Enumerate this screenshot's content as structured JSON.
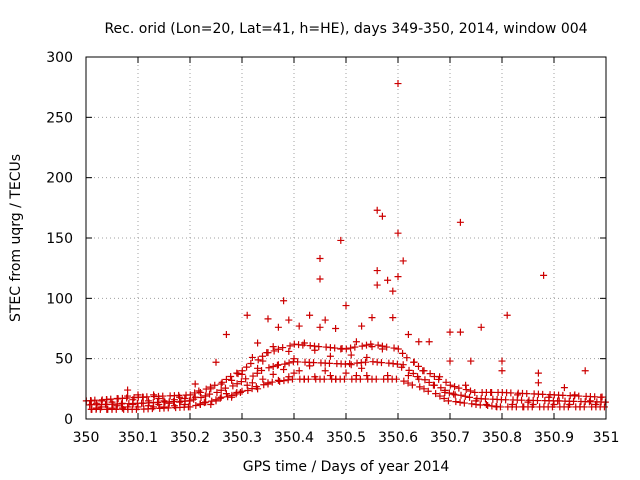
{
  "chart_data": {
    "type": "scatter",
    "title": "Rec. orid (Lon=20, Lat=41, h=HE), days 349-350, 2014, window 004",
    "xlabel": "GPS time / Days of year 2014",
    "ylabel": "STEC from uqrg / TECUs",
    "xlim": [
      350,
      351
    ],
    "ylim": [
      0,
      300
    ],
    "x_ticks": [
      350,
      350.1,
      350.2,
      350.3,
      350.4,
      350.5,
      350.6,
      350.7,
      350.8,
      350.9,
      351
    ],
    "x_tick_labels": [
      "350",
      "350.1",
      "350.2",
      "350.3",
      "350.4",
      "350.5",
      "350.6",
      "350.7",
      "350.8",
      "350.9",
      "351"
    ],
    "y_ticks": [
      0,
      50,
      100,
      150,
      200,
      250,
      300
    ],
    "y_tick_labels": [
      "0",
      "50",
      "100",
      "150",
      "200",
      "250",
      "300"
    ],
    "grid": true,
    "marker": "plus",
    "color": "#cc0000",
    "legend": "none",
    "points": [
      [
        350.01,
        8
      ],
      [
        350.01,
        12
      ],
      [
        350.01,
        15
      ],
      [
        350.02,
        9
      ],
      [
        350.02,
        13
      ],
      [
        350.03,
        10
      ],
      [
        350.03,
        15
      ],
      [
        350.04,
        8
      ],
      [
        350.04,
        12
      ],
      [
        350.04,
        16
      ],
      [
        350.05,
        9
      ],
      [
        350.05,
        14
      ],
      [
        350.06,
        11
      ],
      [
        350.06,
        17
      ],
      [
        350.07,
        9
      ],
      [
        350.07,
        13
      ],
      [
        350.08,
        10
      ],
      [
        350.08,
        19
      ],
      [
        350.08,
        24
      ],
      [
        350.09,
        12
      ],
      [
        350.09,
        16
      ],
      [
        350.1,
        10
      ],
      [
        350.1,
        20
      ],
      [
        350.11,
        13
      ],
      [
        350.11,
        18
      ],
      [
        350.12,
        11
      ],
      [
        350.12,
        15
      ],
      [
        350.13,
        10
      ],
      [
        350.13,
        20
      ],
      [
        350.14,
        12
      ],
      [
        350.14,
        17
      ],
      [
        350.15,
        10
      ],
      [
        350.15,
        15
      ],
      [
        350.16,
        13
      ],
      [
        350.17,
        11
      ],
      [
        350.17,
        16
      ],
      [
        350.18,
        14
      ],
      [
        350.18,
        18
      ],
      [
        350.19,
        12
      ],
      [
        350.19,
        17
      ],
      [
        350.2,
        10
      ],
      [
        350.2,
        15
      ],
      [
        350.21,
        18
      ],
      [
        350.21,
        29
      ],
      [
        350.22,
        12
      ],
      [
        350.22,
        22
      ],
      [
        350.23,
        14
      ],
      [
        350.23,
        19
      ],
      [
        350.24,
        12
      ],
      [
        350.24,
        25
      ],
      [
        350.25,
        15
      ],
      [
        350.25,
        47
      ],
      [
        350.26,
        18
      ],
      [
        350.26,
        29
      ],
      [
        350.27,
        21
      ],
      [
        350.27,
        70
      ],
      [
        350.28,
        18
      ],
      [
        350.28,
        32
      ],
      [
        350.29,
        22
      ],
      [
        350.29,
        38
      ],
      [
        350.3,
        23
      ],
      [
        350.3,
        37
      ],
      [
        350.31,
        86
      ],
      [
        350.31,
        28
      ],
      [
        350.32,
        30
      ],
      [
        350.32,
        51
      ],
      [
        350.33,
        25
      ],
      [
        350.33,
        42
      ],
      [
        350.33,
        63
      ],
      [
        350.34,
        33
      ],
      [
        350.34,
        48
      ],
      [
        350.35,
        29
      ],
      [
        350.35,
        83
      ],
      [
        350.35,
        55
      ],
      [
        350.36,
        37
      ],
      [
        350.36,
        60
      ],
      [
        350.37,
        32
      ],
      [
        350.37,
        45
      ],
      [
        350.37,
        76
      ],
      [
        350.38,
        41
      ],
      [
        350.38,
        98
      ],
      [
        350.39,
        35
      ],
      [
        350.39,
        56
      ],
      [
        350.39,
        82
      ],
      [
        350.4,
        38
      ],
      [
        350.4,
        50
      ],
      [
        350.41,
        40
      ],
      [
        350.41,
        77
      ],
      [
        350.42,
        33
      ],
      [
        350.42,
        63
      ],
      [
        350.43,
        44
      ],
      [
        350.43,
        86
      ],
      [
        350.44,
        35
      ],
      [
        350.44,
        57
      ],
      [
        350.45,
        133
      ],
      [
        350.45,
        116
      ],
      [
        350.45,
        76
      ],
      [
        350.46,
        40
      ],
      [
        350.46,
        82
      ],
      [
        350.47,
        36
      ],
      [
        350.47,
        52
      ],
      [
        350.48,
        33
      ],
      [
        350.48,
        75
      ],
      [
        350.49,
        148
      ],
      [
        350.49,
        58
      ],
      [
        350.5,
        38
      ],
      [
        350.5,
        94
      ],
      [
        350.51,
        45
      ],
      [
        350.51,
        53
      ],
      [
        350.52,
        36
      ],
      [
        350.52,
        64
      ],
      [
        350.53,
        42
      ],
      [
        350.53,
        77
      ],
      [
        350.54,
        36
      ],
      [
        350.54,
        51
      ],
      [
        350.55,
        60
      ],
      [
        350.55,
        84
      ],
      [
        350.56,
        173
      ],
      [
        350.56,
        123
      ],
      [
        350.56,
        111
      ],
      [
        350.57,
        168
      ],
      [
        350.57,
        58
      ],
      [
        350.58,
        115
      ],
      [
        350.58,
        36
      ],
      [
        350.59,
        106
      ],
      [
        350.59,
        84
      ],
      [
        350.6,
        278
      ],
      [
        350.6,
        154
      ],
      [
        350.6,
        118
      ],
      [
        350.61,
        131
      ],
      [
        350.61,
        45
      ],
      [
        350.62,
        36
      ],
      [
        350.62,
        70
      ],
      [
        350.63,
        47
      ],
      [
        350.64,
        33
      ],
      [
        350.64,
        64
      ],
      [
        350.65,
        40
      ],
      [
        350.66,
        64
      ],
      [
        350.67,
        28
      ],
      [
        350.68,
        35
      ],
      [
        350.69,
        22
      ],
      [
        350.7,
        72
      ],
      [
        350.7,
        48
      ],
      [
        350.71,
        20
      ],
      [
        350.72,
        72
      ],
      [
        350.72,
        163
      ],
      [
        350.73,
        28
      ],
      [
        350.74,
        48
      ],
      [
        350.75,
        15
      ],
      [
        350.76,
        76
      ],
      [
        350.77,
        12
      ],
      [
        350.78,
        22
      ],
      [
        350.79,
        10
      ],
      [
        350.8,
        40
      ],
      [
        350.8,
        48
      ],
      [
        350.81,
        86
      ],
      [
        350.82,
        12
      ],
      [
        350.83,
        20
      ],
      [
        350.84,
        10
      ],
      [
        350.85,
        14
      ],
      [
        350.86,
        12
      ],
      [
        350.87,
        38
      ],
      [
        350.87,
        30
      ],
      [
        350.88,
        119
      ],
      [
        350.89,
        18
      ],
      [
        350.9,
        12
      ],
      [
        350.91,
        15
      ],
      [
        350.92,
        26
      ],
      [
        350.93,
        12
      ],
      [
        350.94,
        20
      ],
      [
        350.95,
        10
      ],
      [
        350.96,
        40
      ],
      [
        350.97,
        15
      ],
      [
        350.98,
        12
      ],
      [
        350.99,
        18
      ]
    ],
    "band_upper": [
      [
        350.0,
        15
      ],
      [
        350.1,
        18
      ],
      [
        350.2,
        20
      ],
      [
        350.25,
        28
      ],
      [
        350.3,
        40
      ],
      [
        350.35,
        55
      ],
      [
        350.4,
        62
      ],
      [
        350.45,
        60
      ],
      [
        350.5,
        58
      ],
      [
        350.55,
        62
      ],
      [
        350.6,
        58
      ],
      [
        350.65,
        40
      ],
      [
        350.7,
        28
      ],
      [
        350.75,
        22
      ],
      [
        350.8,
        22
      ],
      [
        350.9,
        20
      ],
      [
        351.0,
        18
      ]
    ],
    "band_lower": [
      [
        350.0,
        8
      ],
      [
        350.1,
        8
      ],
      [
        350.2,
        10
      ],
      [
        350.25,
        16
      ],
      [
        350.3,
        22
      ],
      [
        350.35,
        30
      ],
      [
        350.4,
        33
      ],
      [
        350.5,
        33
      ],
      [
        350.6,
        33
      ],
      [
        350.65,
        25
      ],
      [
        350.7,
        15
      ],
      [
        350.75,
        12
      ],
      [
        350.8,
        10
      ],
      [
        350.9,
        10
      ],
      [
        351.0,
        10
      ]
    ]
  }
}
